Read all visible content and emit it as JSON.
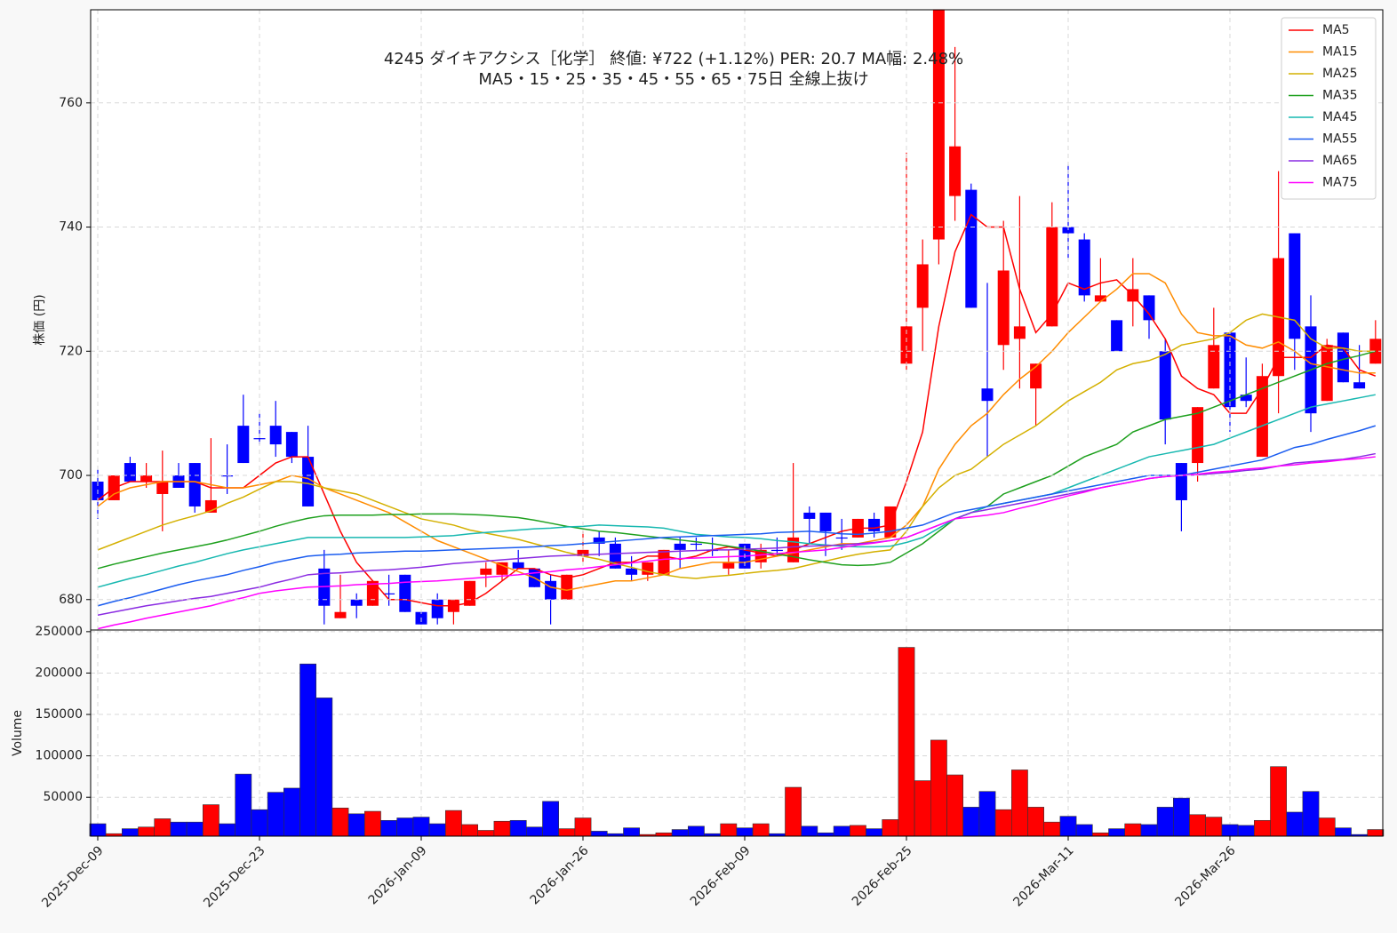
{
  "chart_data": [
    {
      "type": "candlestick",
      "title": "4245  ダイキアクシス［化学］ 終値: ¥722 (+1.12%)  PER: 20.7  MA幅: 2.48%",
      "subtitle": "MA5・15・25・35・45・55・65・75日 全線上抜け",
      "y_label": "株価 (円)",
      "up_color": "#ff0000",
      "down_color": "#0000ff",
      "open": [
        699,
        696,
        702,
        699,
        697,
        700,
        702,
        694,
        700,
        708,
        706,
        708,
        707,
        703,
        685,
        677,
        680,
        679,
        681,
        684,
        678,
        680,
        678,
        679,
        684,
        684,
        686,
        685,
        683,
        680,
        687,
        690,
        689,
        685,
        684,
        684,
        689,
        689,
        688,
        685,
        689,
        686,
        688,
        686,
        694,
        694,
        690,
        690,
        693,
        690,
        718,
        727,
        738,
        745,
        746,
        714,
        721,
        722,
        714,
        724,
        740,
        738,
        728,
        725,
        728,
        729,
        720,
        702,
        702,
        714,
        723,
        713,
        703,
        716,
        739,
        724,
        712,
        723,
        715,
        718
      ],
      "high": [
        701,
        700,
        703,
        702,
        704,
        702,
        702,
        706,
        705,
        713,
        710,
        712,
        707,
        708,
        688,
        684,
        681,
        683,
        684,
        684,
        678,
        681,
        680,
        683,
        686,
        686,
        688,
        685,
        684,
        684,
        691,
        691,
        690,
        687,
        686,
        688,
        690,
        690,
        690,
        688,
        689,
        689,
        690,
        702,
        695,
        694,
        693,
        693,
        694,
        695,
        752,
        738,
        775,
        769,
        747,
        731,
        741,
        745,
        718,
        744,
        750,
        739,
        735,
        725,
        735,
        729,
        722,
        702,
        711,
        727,
        723,
        719,
        718,
        749,
        739,
        729,
        722,
        723,
        721,
        725
      ],
      "low": [
        693,
        696,
        699,
        698,
        691,
        698,
        694,
        694,
        697,
        702,
        705,
        703,
        702,
        695,
        676,
        677,
        677,
        679,
        679,
        678,
        676,
        676,
        676,
        679,
        682,
        683,
        685,
        682,
        676,
        680,
        686,
        687,
        685,
        683,
        683,
        684,
        685,
        688,
        687,
        684,
        685,
        685,
        687,
        686,
        689,
        687,
        688,
        690,
        690,
        690,
        717,
        720,
        734,
        741,
        727,
        703,
        717,
        714,
        708,
        724,
        735,
        728,
        728,
        720,
        724,
        722,
        705,
        691,
        699,
        714,
        707,
        711,
        703,
        710,
        717,
        707,
        712,
        715,
        714,
        718
      ],
      "close": [
        696,
        700,
        699,
        700,
        699,
        698,
        695,
        696,
        700,
        702,
        706,
        705,
        703,
        695,
        679,
        678,
        679,
        683,
        681,
        678,
        676,
        677,
        680,
        683,
        685,
        686,
        685,
        682,
        680,
        684,
        688,
        689,
        685,
        684,
        686,
        688,
        688,
        689,
        688,
        686,
        685,
        688,
        688,
        690,
        693,
        691,
        690,
        693,
        691,
        695,
        724,
        734,
        775,
        753,
        727,
        712,
        733,
        724,
        718,
        740,
        739,
        729,
        729,
        720,
        730,
        725,
        709,
        696,
        711,
        721,
        711,
        712,
        716,
        735,
        722,
        710,
        721,
        715,
        714,
        722
      ],
      "series": [
        {
          "name": "MA5",
          "color": "#ff0000",
          "values": [
            696,
            698,
            699,
            699,
            699,
            699,
            699,
            698,
            698,
            698,
            700,
            702,
            703,
            703,
            697,
            691,
            686,
            683,
            680,
            680,
            679.5,
            679,
            679,
            679.5,
            681,
            683,
            685,
            685,
            684,
            683.5,
            684,
            685,
            686,
            686,
            687,
            687,
            686.5,
            687,
            688,
            688.5,
            688,
            687.5,
            687,
            688,
            689,
            690,
            691,
            691.5,
            691.5,
            692,
            699,
            707,
            724,
            736,
            742,
            740,
            740,
            730,
            723,
            726,
            731,
            730,
            731,
            731.5,
            729,
            726,
            722,
            716,
            714,
            713,
            710,
            710,
            714,
            719,
            719,
            719,
            721,
            720.5,
            717,
            716
          ]
        },
        {
          "name": "MA15",
          "color": "#ff8c00",
          "values": [
            695,
            697,
            698,
            698.5,
            699,
            699,
            699,
            698.5,
            698,
            698,
            698.5,
            699,
            700,
            699.5,
            698,
            697,
            696,
            695,
            694,
            692.5,
            691,
            689.5,
            688.5,
            687.5,
            686.5,
            685.5,
            684.5,
            683.5,
            682,
            681.5,
            682,
            682.5,
            683,
            683,
            683.5,
            684,
            685,
            685.5,
            686,
            686,
            686,
            686.5,
            687,
            687.5,
            688,
            688.5,
            689,
            689,
            689.5,
            690,
            692,
            695,
            701,
            705,
            708,
            710,
            713,
            715.5,
            717.5,
            720,
            723,
            725.5,
            728,
            730,
            732.5,
            732.5,
            731,
            726,
            723,
            722.5,
            722.5,
            721,
            720.5,
            721.5,
            720,
            718,
            717.5,
            717,
            716.5,
            716.5
          ]
        },
        {
          "name": "MA25",
          "color": "#d4b000",
          "values": [
            688,
            689,
            690,
            691,
            692,
            692.8,
            693.5,
            694.3,
            695.5,
            696.5,
            697.8,
            699,
            699,
            698.7,
            698,
            697.5,
            697,
            696,
            695,
            694,
            693,
            692.5,
            692,
            691.2,
            690.7,
            690.2,
            689.7,
            689,
            688.3,
            687.6,
            687,
            686.5,
            685.8,
            685.2,
            684.5,
            684,
            683.6,
            683.4,
            683.7,
            683.9,
            684.2,
            684.5,
            684.7,
            685,
            685.6,
            686.2,
            686.8,
            687.3,
            687.7,
            688,
            691,
            695,
            698,
            700,
            701,
            703,
            705,
            706.5,
            708,
            710,
            712,
            713.5,
            715,
            717,
            718,
            718.5,
            719.5,
            721,
            721.5,
            722,
            723,
            725,
            726,
            725.5,
            725,
            722,
            720.5,
            720.5,
            720,
            720
          ]
        },
        {
          "name": "MA35",
          "color": "#1ea01e",
          "values": [
            685,
            685.7,
            686.3,
            686.9,
            687.5,
            688,
            688.5,
            689,
            689.6,
            690.3,
            691,
            691.8,
            692.5,
            693.1,
            693.5,
            693.6,
            693.6,
            693.6,
            693.7,
            693.7,
            693.8,
            693.8,
            693.8,
            693.7,
            693.6,
            693.4,
            693.2,
            692.8,
            692.3,
            691.8,
            691.4,
            691,
            690.8,
            690.5,
            690.2,
            689.9,
            689.6,
            689.3,
            689,
            688.6,
            688.2,
            687.8,
            687.3,
            686.9,
            686.4,
            686,
            685.6,
            685.5,
            685.6,
            686,
            687.5,
            689,
            691,
            693,
            694,
            695,
            697,
            698,
            699,
            700,
            701.5,
            703,
            704,
            705,
            707,
            708,
            709,
            709.5,
            710,
            711,
            712,
            713,
            714,
            715,
            716,
            717,
            718,
            718.7,
            719.3,
            720
          ]
        },
        {
          "name": "MA45",
          "color": "#17b8b0",
          "values": [
            682,
            682.7,
            683.4,
            684,
            684.7,
            685.4,
            686,
            686.7,
            687.4,
            688,
            688.5,
            689,
            689.5,
            690,
            690,
            690,
            690,
            690,
            690,
            690,
            690.1,
            690.2,
            690.3,
            690.6,
            690.8,
            691,
            691.2,
            691.4,
            691.5,
            691.7,
            691.8,
            692,
            691.9,
            691.8,
            691.7,
            691.5,
            691,
            690.5,
            690.3,
            690.1,
            690,
            689.8,
            689.5,
            689.3,
            689,
            688.8,
            688.6,
            688.5,
            688.5,
            688.6,
            689.2,
            690,
            691.5,
            693,
            694,
            695,
            695.5,
            696,
            696.5,
            697,
            698,
            699,
            700,
            701,
            702,
            703,
            703.5,
            704,
            704.5,
            705,
            706,
            707,
            708,
            709,
            710,
            711,
            711.5,
            712,
            712.5,
            713
          ]
        },
        {
          "name": "MA55",
          "color": "#1a5cf0",
          "values": [
            679,
            679.7,
            680.3,
            681,
            681.7,
            682.4,
            683,
            683.5,
            684,
            684.7,
            685.3,
            686,
            686.5,
            687,
            687.2,
            687.3,
            687.5,
            687.6,
            687.7,
            687.8,
            687.8,
            687.9,
            688,
            688.1,
            688.2,
            688.3,
            688.4,
            688.5,
            688.7,
            688.8,
            689,
            689.2,
            689.4,
            689.6,
            689.8,
            690,
            690.1,
            690.2,
            690.3,
            690.4,
            690.5,
            690.6,
            690.8,
            690.9,
            691,
            690.8,
            690.6,
            690.5,
            690.7,
            691,
            691.5,
            692,
            693,
            694,
            694.5,
            695,
            695.5,
            696,
            696.5,
            697,
            697.5,
            698,
            698.5,
            699,
            699.5,
            700,
            700,
            700,
            700.5,
            701,
            701.5,
            702,
            702.5,
            703.5,
            704.5,
            705,
            705.8,
            706.5,
            707.2,
            708
          ]
        },
        {
          "name": "MA65",
          "color": "#8a2be2",
          "values": [
            677.5,
            678,
            678.5,
            679,
            679.4,
            679.8,
            680.2,
            680.5,
            681,
            681.5,
            682,
            682.7,
            683.3,
            684,
            684.2,
            684.3,
            684.5,
            684.7,
            684.8,
            685,
            685.2,
            685.5,
            685.8,
            686,
            686.2,
            686.4,
            686.6,
            686.8,
            687,
            687.1,
            687.2,
            687.3,
            687.4,
            687.5,
            687.6,
            687.7,
            687.8,
            687.9,
            688,
            688,
            688.1,
            688.2,
            688.3,
            688.5,
            688.6,
            688.7,
            688.8,
            689,
            689.2,
            689.5,
            690,
            691,
            692,
            693,
            694,
            694.5,
            695,
            695.5,
            696,
            696.5,
            697,
            697.5,
            698,
            698.5,
            699,
            699.5,
            699.8,
            700,
            700.1,
            700.3,
            700.5,
            700.8,
            701,
            701.5,
            702,
            702.2,
            702.4,
            702.6,
            703,
            703.5
          ]
        },
        {
          "name": "MA75",
          "color": "#ff00ff",
          "values": [
            675.3,
            675.9,
            676.4,
            677,
            677.5,
            678,
            678.5,
            679,
            679.7,
            680.3,
            681,
            681.4,
            681.7,
            682,
            682.1,
            682.2,
            682.4,
            682.5,
            682.6,
            682.8,
            682.9,
            683,
            683.2,
            683.4,
            683.6,
            683.8,
            684,
            684.3,
            684.5,
            684.8,
            685,
            685.3,
            685.6,
            685.9,
            686.2,
            686.5,
            686.6,
            686.7,
            686.8,
            686.9,
            687,
            687.2,
            687.4,
            687.6,
            687.8,
            688,
            688.4,
            688.8,
            689.1,
            689.5,
            690,
            691,
            692,
            693,
            693.3,
            693.6,
            694,
            694.7,
            695.3,
            696,
            696.7,
            697.3,
            698,
            698.5,
            699,
            699.5,
            699.8,
            700,
            700.2,
            700.5,
            700.7,
            701,
            701.2,
            701.5,
            701.7,
            702,
            702.2,
            702.5,
            702.7,
            703
          ]
        }
      ],
      "ylim": [
        675.1,
        775
      ],
      "yticks": [
        680,
        700,
        720,
        740,
        760
      ],
      "grid": true,
      "legend": "upper right"
    },
    {
      "type": "bar",
      "y_label": "Volume",
      "categories": [
        "2025-Dec-09",
        null,
        null,
        null,
        null,
        null,
        null,
        null,
        null,
        null,
        "2025-Dec-23",
        null,
        null,
        null,
        null,
        null,
        null,
        null,
        null,
        null,
        "2026-Jan-09",
        null,
        null,
        null,
        null,
        null,
        null,
        null,
        null,
        null,
        "2026-Jan-26",
        null,
        null,
        null,
        null,
        null,
        null,
        null,
        null,
        null,
        "2026-Feb-09",
        null,
        null,
        null,
        null,
        null,
        null,
        null,
        null,
        null,
        "2026-Feb-25",
        null,
        null,
        null,
        null,
        null,
        null,
        null,
        null,
        null,
        "2026-Mar-11",
        null,
        null,
        null,
        null,
        null,
        null,
        null,
        null,
        null,
        "2026-Mar-26",
        null,
        null,
        null,
        null,
        null,
        null,
        null,
        null,
        null
      ],
      "values": [
        18000,
        6000,
        12000,
        14000,
        24000,
        20000,
        20000,
        41000,
        18000,
        78000,
        35000,
        56000,
        61000,
        211000,
        170000,
        37000,
        30000,
        33000,
        22000,
        25000,
        26000,
        18000,
        34000,
        17000,
        10000,
        21000,
        22000,
        14000,
        45000,
        12000,
        25000,
        9000,
        6000,
        13000,
        5000,
        7000,
        11000,
        15000,
        6000,
        18000,
        13000,
        18000,
        6000,
        62000,
        15000,
        7000,
        15000,
        16000,
        12000,
        23000,
        231000,
        70000,
        119000,
        77000,
        38000,
        57000,
        35000,
        83000,
        38000,
        20000,
        27000,
        17000,
        7000,
        12000,
        18000,
        17000,
        38000,
        49000,
        29000,
        26000,
        17000,
        16000,
        22000,
        87000,
        32000,
        57000,
        25000,
        13000,
        5000,
        11000
      ],
      "ylim": [
        3000,
        252000
      ],
      "yticks": [
        50000,
        100000,
        150000,
        200000,
        250000
      ],
      "grid": true
    }
  ]
}
